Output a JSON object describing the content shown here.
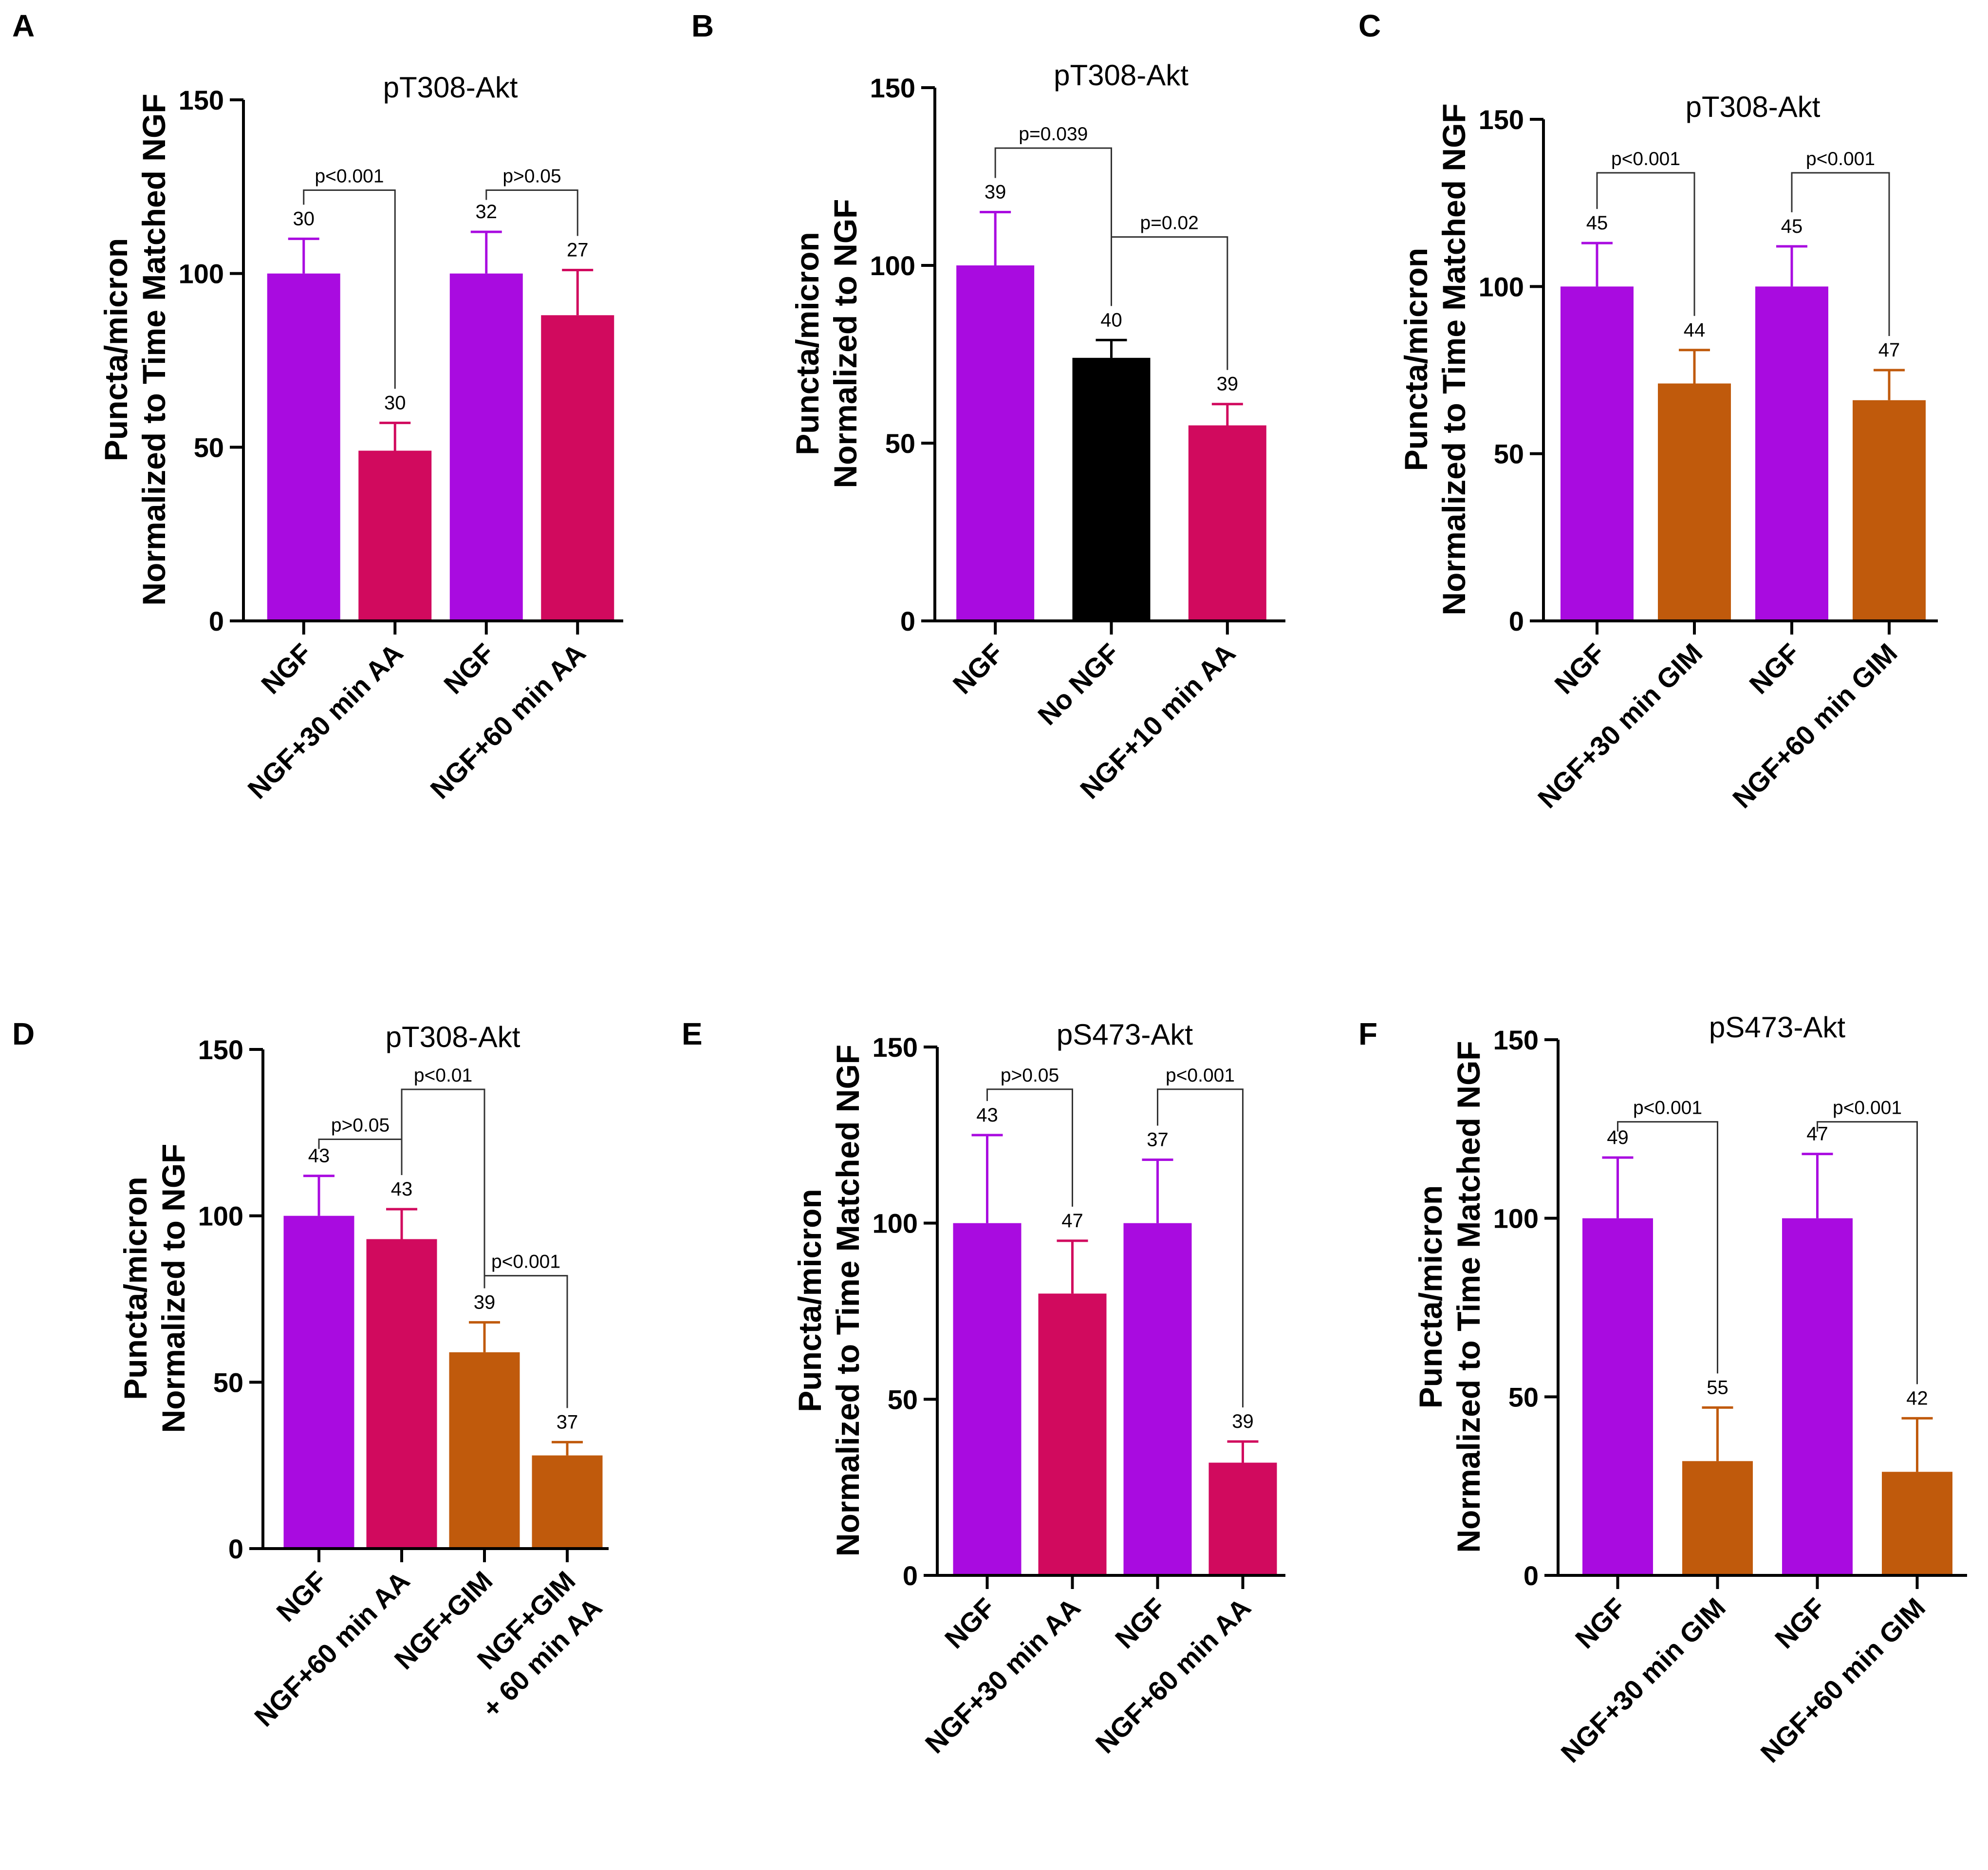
{
  "colors": {
    "purple": "#a90be0",
    "crimson": "#d10a5e",
    "black": "#000000",
    "orange": "#c05a0c"
  },
  "chart_data": [
    {
      "panel": "A",
      "type": "bar",
      "title": "pT308-Akt",
      "ylabel": [
        "Puncta/micron",
        "Normalized to Time Matched NGF"
      ],
      "ylim": [
        0,
        150
      ],
      "yticks": [
        0,
        50,
        100,
        150
      ],
      "categories": [
        [
          "NGF"
        ],
        [
          "NGF+30 min AA"
        ],
        [
          "NGF"
        ],
        [
          "NGF+60 min AA"
        ]
      ],
      "values": [
        100,
        49,
        100,
        88
      ],
      "errors": [
        10,
        8,
        12,
        13
      ],
      "n": [
        "30",
        "30",
        "32",
        "27"
      ],
      "bar_colors": [
        "purple",
        "crimson",
        "purple",
        "crimson"
      ],
      "comparisons": [
        {
          "from": 0,
          "to": 1,
          "label": "p<0.001",
          "level": 124
        },
        {
          "from": 2,
          "to": 3,
          "label": "p>0.05",
          "level": 124
        }
      ]
    },
    {
      "panel": "B",
      "type": "bar",
      "title": "pT308-Akt",
      "ylabel": [
        "Puncta/micron",
        "Normalized to NGF"
      ],
      "ylim": [
        0,
        150
      ],
      "yticks": [
        0,
        50,
        100,
        150
      ],
      "categories": [
        [
          "NGF"
        ],
        [
          "No NGF"
        ],
        [
          "NGF+10 min AA"
        ]
      ],
      "values": [
        100,
        74,
        55
      ],
      "errors": [
        15,
        5,
        6
      ],
      "n": [
        "39",
        "40",
        "39"
      ],
      "bar_colors": [
        "purple",
        "black",
        "crimson"
      ],
      "comparisons": [
        {
          "from": 0,
          "to": 1,
          "label": "p=0.039",
          "level": 133
        },
        {
          "from": 1,
          "to": 2,
          "label": "p=0.02",
          "level": 108
        }
      ]
    },
    {
      "panel": "C",
      "type": "bar",
      "title": "pT308-Akt",
      "ylabel": [
        "Puncta/micron",
        "Normalized to Time Matched NGF"
      ],
      "ylim": [
        0,
        150
      ],
      "yticks": [
        0,
        50,
        100,
        150
      ],
      "categories": [
        [
          "NGF"
        ],
        [
          "NGF+30 min GIM"
        ],
        [
          "NGF"
        ],
        [
          "NGF+60 min GIM"
        ]
      ],
      "values": [
        100,
        71,
        100,
        66
      ],
      "errors": [
        13,
        10,
        12,
        9
      ],
      "n": [
        "45",
        "44",
        "45",
        "47"
      ],
      "bar_colors": [
        "purple",
        "orange",
        "purple",
        "orange"
      ],
      "comparisons": [
        {
          "from": 0,
          "to": 1,
          "label": "p<0.001",
          "level": 134
        },
        {
          "from": 2,
          "to": 3,
          "label": "p<0.001",
          "level": 134
        }
      ]
    },
    {
      "panel": "D",
      "type": "bar",
      "title": "pT308-Akt",
      "ylabel": [
        "Puncta/micron",
        "Normalized to NGF"
      ],
      "ylim": [
        0,
        150
      ],
      "yticks": [
        0,
        50,
        100,
        150
      ],
      "categories": [
        [
          "NGF"
        ],
        [
          "NGF+60 min AA"
        ],
        [
          "NGF+GIM"
        ],
        [
          "NGF+GIM",
          "+ 60 min AA"
        ]
      ],
      "values": [
        100,
        93,
        59,
        28
      ],
      "errors": [
        12,
        9,
        9,
        4
      ],
      "n": [
        "43",
        "43",
        "39",
        "37"
      ],
      "bar_colors": [
        "purple",
        "crimson",
        "orange",
        "orange"
      ],
      "comparisons": [
        {
          "from": 0,
          "to": 1,
          "label": "p>0.05",
          "level": 123
        },
        {
          "from": 1,
          "to": 2,
          "label": "p<0.01",
          "level": 138
        },
        {
          "from": 2,
          "to": 3,
          "label": "p<0.001",
          "level": 82
        }
      ]
    },
    {
      "panel": "E",
      "type": "bar",
      "title": "pS473-Akt",
      "ylabel": [
        "Puncta/micron",
        "Normalized to Time Matched NGF"
      ],
      "ylim": [
        0,
        150
      ],
      "yticks": [
        0,
        50,
        100,
        150
      ],
      "categories": [
        [
          "NGF"
        ],
        [
          "NGF+30 min AA"
        ],
        [
          "NGF"
        ],
        [
          "NGF+60 min AA"
        ]
      ],
      "values": [
        100,
        80,
        100,
        32
      ],
      "errors": [
        25,
        15,
        18,
        6
      ],
      "n": [
        "43",
        "47",
        "37",
        "39"
      ],
      "bar_colors": [
        "purple",
        "crimson",
        "purple",
        "crimson"
      ],
      "comparisons": [
        {
          "from": 0,
          "to": 1,
          "label": "p>0.05",
          "level": 138
        },
        {
          "from": 2,
          "to": 3,
          "label": "p<0.001",
          "level": 138
        }
      ]
    },
    {
      "panel": "F",
      "type": "bar",
      "title": "pS473-Akt",
      "ylabel": [
        "Puncta/micron",
        "Normalized to Time Matched NGF"
      ],
      "ylim": [
        0,
        150
      ],
      "yticks": [
        0,
        50,
        100,
        150
      ],
      "categories": [
        [
          "NGF"
        ],
        [
          "NGF+30 min GIM"
        ],
        [
          "NGF"
        ],
        [
          "NGF+60 min GIM"
        ]
      ],
      "values": [
        100,
        32,
        100,
        29
      ],
      "errors": [
        17,
        15,
        18,
        15
      ],
      "n": [
        "49",
        "55",
        "47",
        "42"
      ],
      "bar_colors": [
        "purple",
        "orange",
        "purple",
        "orange"
      ],
      "comparisons": [
        {
          "from": 0,
          "to": 1,
          "label": "p<0.001",
          "level": 127
        },
        {
          "from": 2,
          "to": 3,
          "label": "p<0.001",
          "level": 127
        }
      ]
    }
  ]
}
